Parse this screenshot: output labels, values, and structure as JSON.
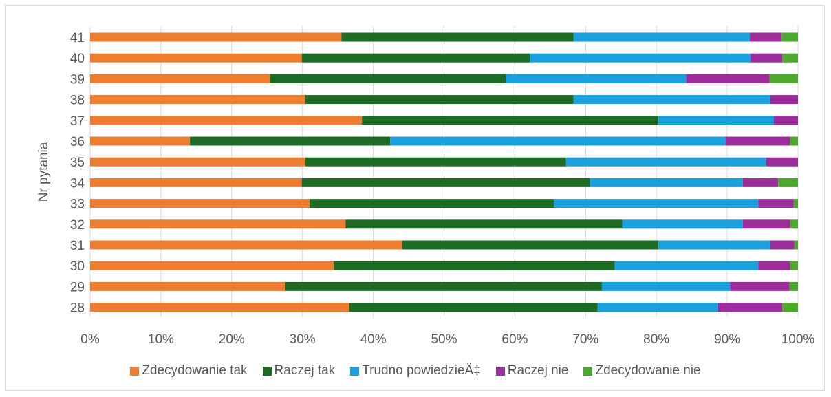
{
  "chart_data": {
    "type": "bar",
    "orientation": "horizontal",
    "stacked": "percent",
    "ylabel": "Nr pytania",
    "xlabel": "",
    "xlim": [
      0,
      100
    ],
    "x_ticks": [
      "0%",
      "10%",
      "20%",
      "30%",
      "40%",
      "50%",
      "60%",
      "70%",
      "80%",
      "90%",
      "100%"
    ],
    "categories": [
      "28",
      "29",
      "30",
      "31",
      "32",
      "33",
      "34",
      "35",
      "36",
      "37",
      "38",
      "39",
      "40",
      "41"
    ],
    "series": [
      {
        "name": "Zdecydowanie tak",
        "color": "#ED7D31",
        "values": [
          36.6,
          27.6,
          34.4,
          44.1,
          36.1,
          31.0,
          29.9,
          30.4,
          14.1,
          38.4,
          30.4,
          25.4,
          29.9,
          35.5
        ]
      },
      {
        "name": "Raczej tak",
        "color": "#1E6B24",
        "values": [
          35.1,
          44.7,
          39.7,
          36.2,
          39.1,
          34.5,
          40.7,
          36.8,
          28.3,
          41.9,
          37.9,
          33.3,
          32.2,
          32.8
        ]
      },
      {
        "name": "Trudno powiedzieÄ‡",
        "color": "#1AA0DC",
        "values": [
          17.0,
          18.1,
          20.3,
          15.8,
          17.0,
          28.9,
          21.6,
          28.3,
          47.4,
          16.3,
          27.8,
          25.5,
          31.2,
          24.9
        ]
      },
      {
        "name": "Raczej nie",
        "color": "#9C2D9A",
        "values": [
          9.1,
          8.4,
          4.5,
          3.4,
          6.7,
          5.0,
          5.0,
          4.5,
          9.1,
          3.4,
          3.9,
          11.8,
          4.5,
          4.5
        ]
      },
      {
        "name": "Zdecydowanie nie",
        "color": "#4EA72E",
        "values": [
          2.2,
          1.2,
          1.1,
          0.5,
          1.1,
          0.6,
          2.8,
          0.0,
          1.1,
          0.0,
          0.0,
          4.0,
          2.2,
          2.3
        ]
      }
    ],
    "legend_position": "bottom",
    "grid": true,
    "grid_color": "#d9d9d9"
  }
}
